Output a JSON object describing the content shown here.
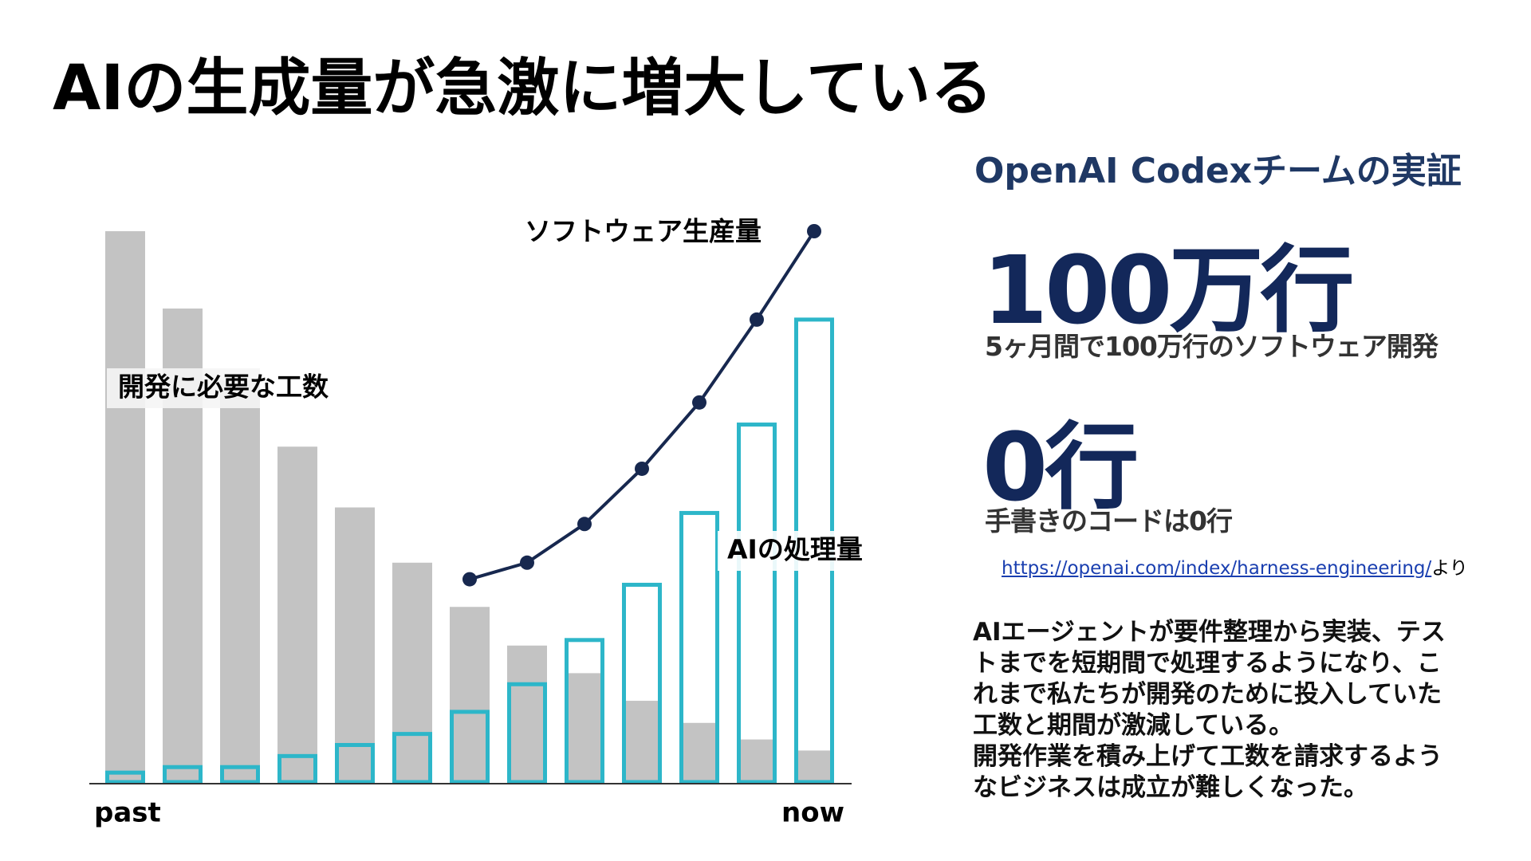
{
  "title": "AIの生成量が急激に増大している",
  "chart_data": {
    "type": "bar_line",
    "series": [
      {
        "name": "開発に必要な工数",
        "type": "bar",
        "color": "#c3c3c3",
        "values": [
          100,
          86,
          73,
          61,
          50,
          40,
          32,
          25,
          20,
          15,
          11,
          8,
          6
        ]
      },
      {
        "name": "AIの処理量",
        "type": "outline_bar",
        "color": "#2db6c9",
        "values": [
          2,
          3,
          3,
          5,
          7,
          9,
          13,
          18,
          26,
          36,
          49,
          65,
          84
        ]
      },
      {
        "name": "ソフトウェア生産量",
        "type": "line",
        "color": "#17284f",
        "values": [
          null,
          null,
          null,
          null,
          null,
          null,
          37,
          40,
          47,
          57,
          69,
          84,
          100
        ]
      }
    ],
    "x_start_label": "past",
    "x_end_label": "now"
  },
  "panel": {
    "heading": "OpenAI Codexチームの実証",
    "stat1": "100万行",
    "stat1_caption": "5ヶ月間で100万行のソフトウェア開発",
    "stat2": "0行",
    "stat2_caption": "手書きのコードは0行",
    "source_link": "https://openai.com/index/harness-engineering/",
    "source_suffix": "より",
    "body_lines": [
      "AIエージェントが要件整理から実装、テス",
      "トまでを短期間で処理するようになり、こ",
      "れまで私たちが開発のために投入していた",
      "工数と期間が激減している。",
      "開発作業を積み上げて工数を請求するよう",
      "なビジネスは成立が難しくなった。"
    ]
  }
}
